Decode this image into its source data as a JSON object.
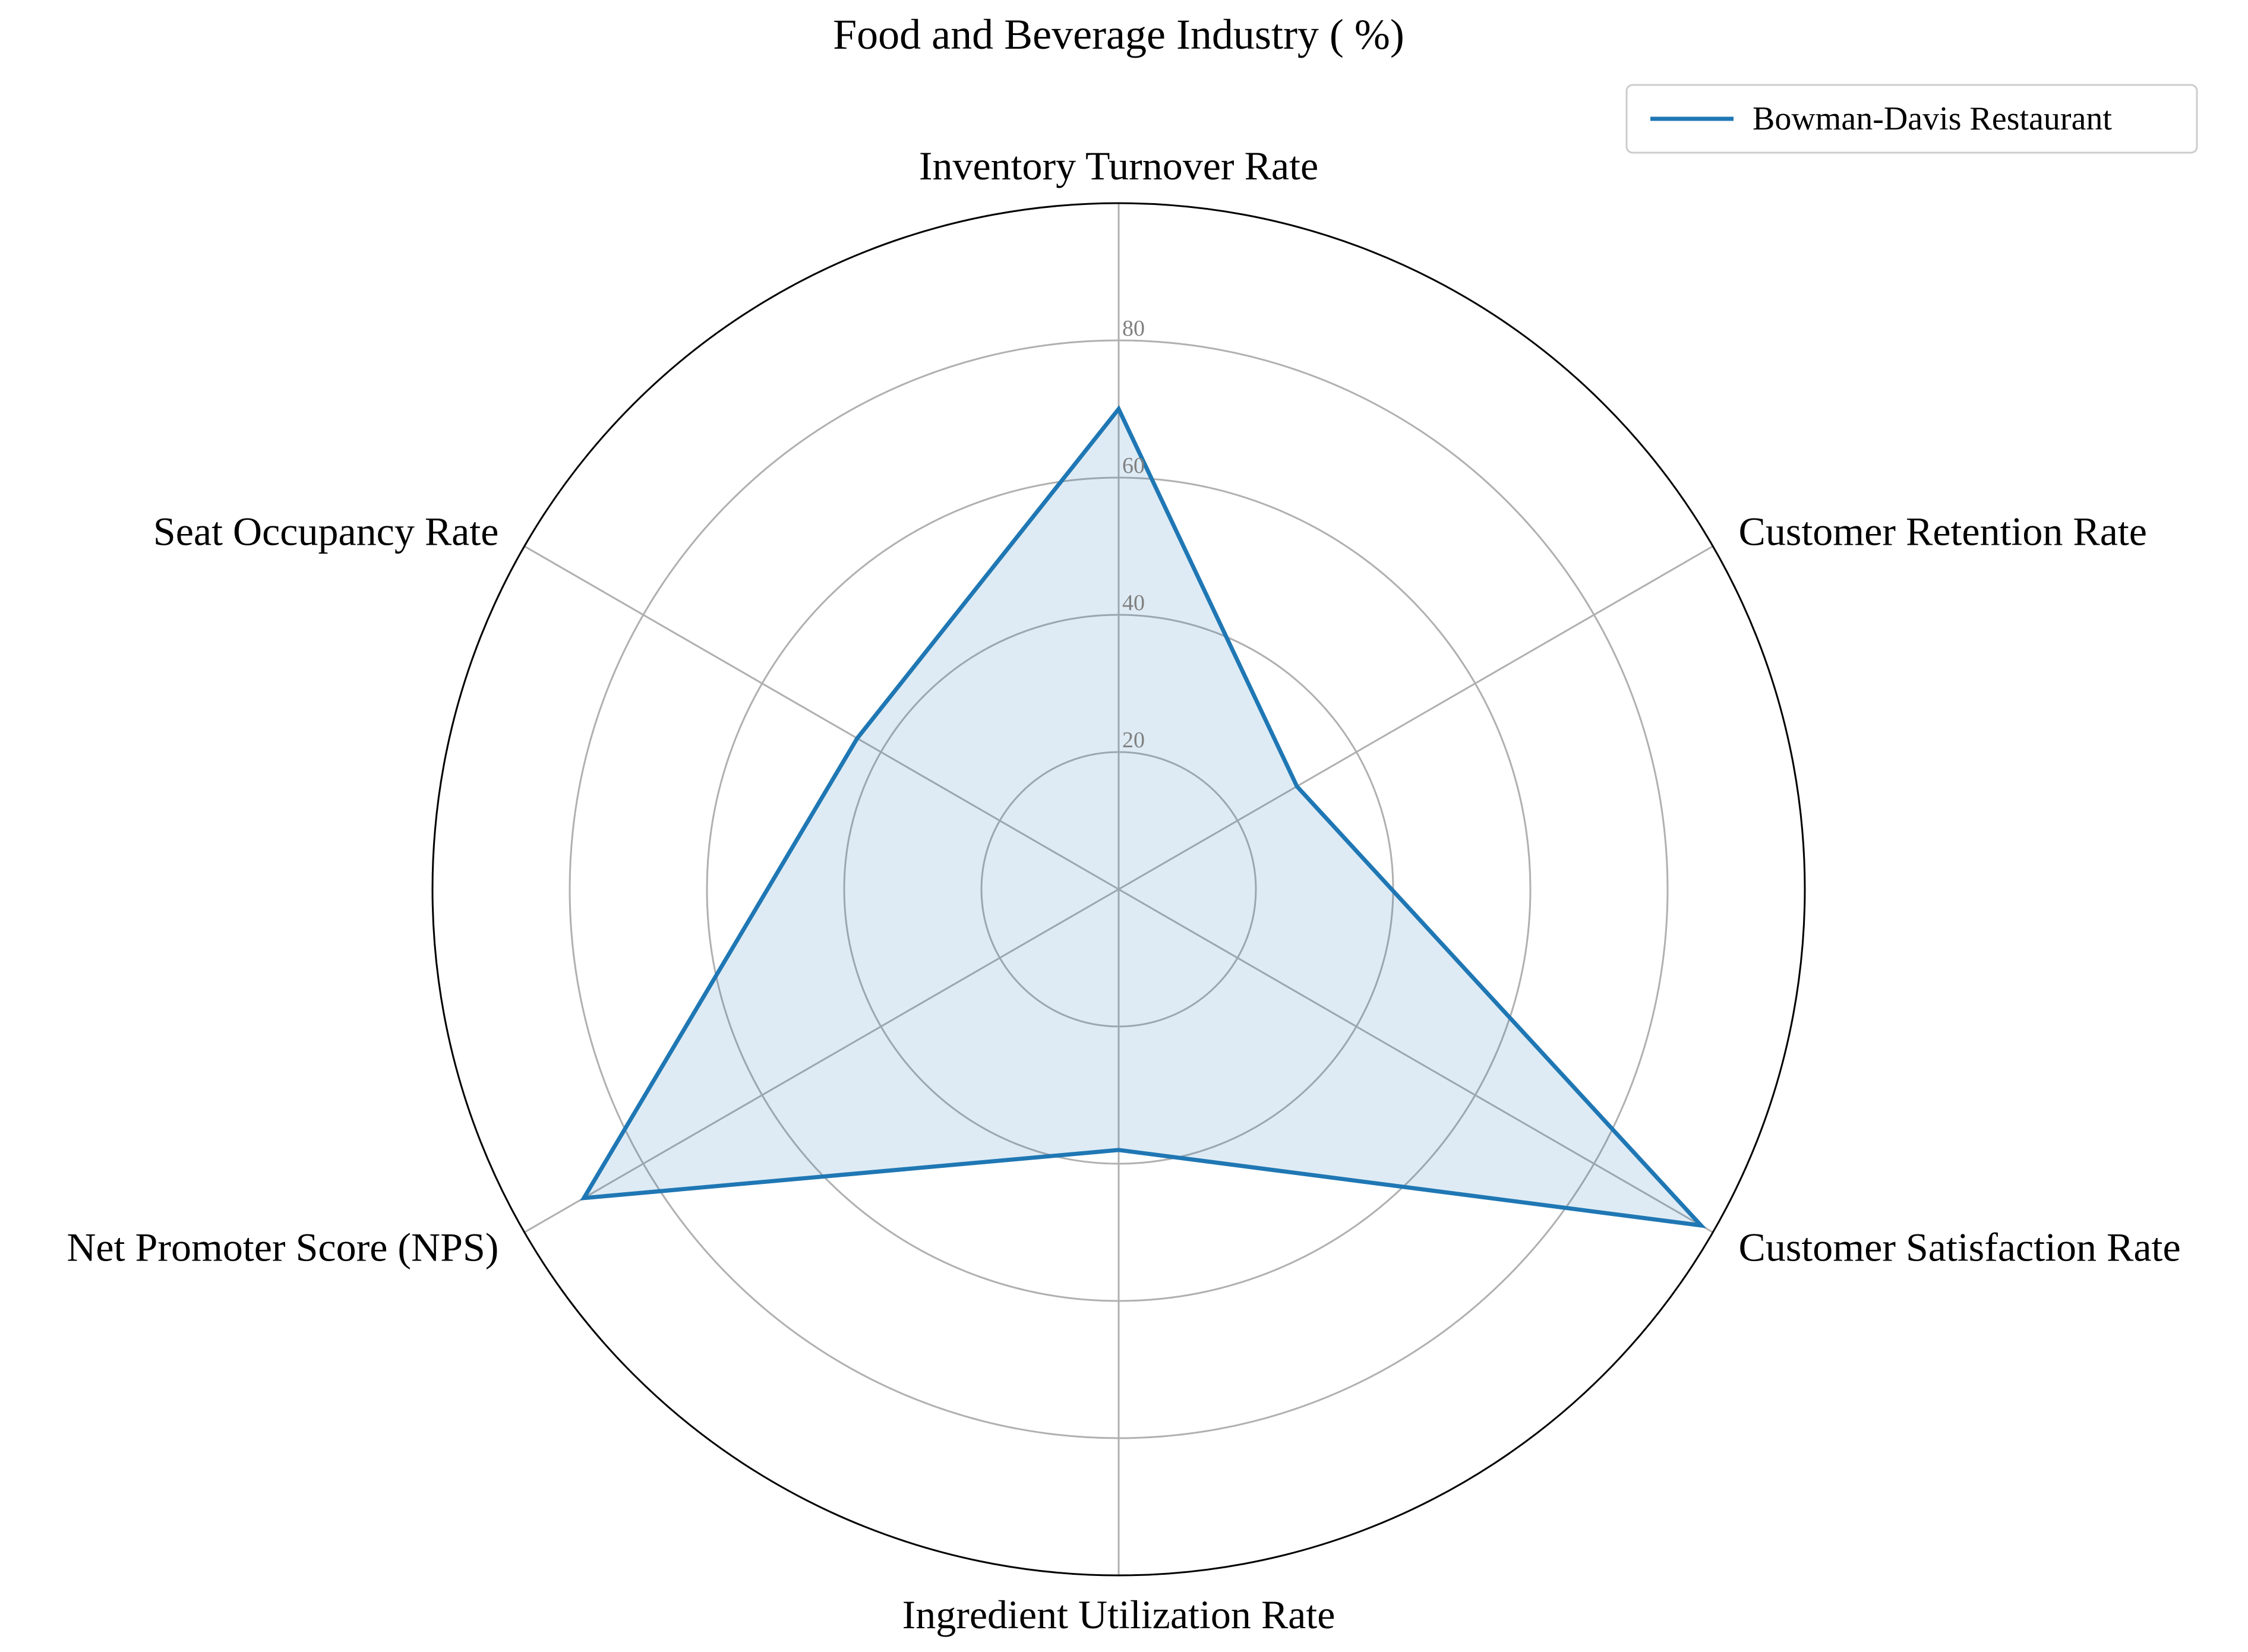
{
  "chart_data": {
    "type": "radar",
    "title": "Food and Beverage Industry ( %)",
    "axes": [
      "Inventory Turnover Rate",
      "Customer Retention Rate",
      "Customer Satisfaction Rate",
      "Ingredient Utilization Rate",
      "Net Promoter Score (NPS)",
      "Seat Occupancy Rate"
    ],
    "radial_ticks": [
      20,
      40,
      60,
      80
    ],
    "rlim": [
      0,
      100
    ],
    "series": [
      {
        "name": "Bowman-Davis Restaurant",
        "values": [
          70,
          30,
          98,
          38,
          90,
          44
        ]
      }
    ],
    "legend_position": "top-right",
    "grid": true,
    "colors": {
      "series": "#1f77b4",
      "grid": "#b0b0b0",
      "tick_label": "#808080",
      "outer_ring": "#000000"
    }
  }
}
